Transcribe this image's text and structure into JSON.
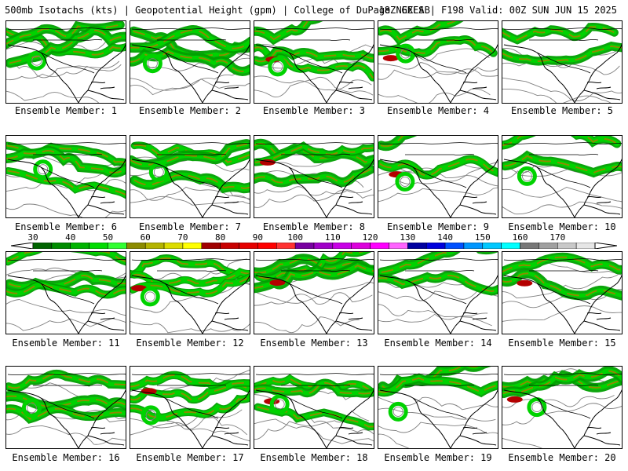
{
  "header": {
    "left": "500mb Isotachs (kts) | Geopotential Height (gpm) | College of DuPage NEXLAB",
    "right": "18Z GEFS | F198 Valid: 00Z SUN JUN 15 2025"
  },
  "colorbar": {
    "labels": [
      "30",
      "40",
      "50",
      "60",
      "70",
      "80",
      "90",
      "100",
      "110",
      "120",
      "130",
      "140",
      "150",
      "160",
      "170"
    ],
    "colors": [
      "#006400",
      "#008c00",
      "#00b400",
      "#00dc00",
      "#32ff32",
      "#8c8c00",
      "#b4b400",
      "#dcdc00",
      "#ffff00",
      "#a00000",
      "#c80000",
      "#e60000",
      "#ff0000",
      "#ff3232",
      "#7800a0",
      "#a000c8",
      "#c800e6",
      "#dc00dc",
      "#ff00ff",
      "#ff64ff",
      "#0000a0",
      "#0000dc",
      "#0050ff",
      "#0096ff",
      "#00c8ff",
      "#00ffff",
      "#787878",
      "#a0a0a0",
      "#c8c8c8",
      "#e6e6e6"
    ]
  },
  "colors": {
    "jet_outer": "#00a000",
    "jet_mid": "#00d200",
    "jet_core": "#8c8c00",
    "jet_max": "#b40000",
    "coast": "#000000",
    "height_contour": "#808080"
  },
  "members": [
    {
      "label": "Ensemble Member: 1"
    },
    {
      "label": "Ensemble Member: 2"
    },
    {
      "label": "Ensemble Member: 3"
    },
    {
      "label": "Ensemble Member: 4"
    },
    {
      "label": "Ensemble Member: 5"
    },
    {
      "label": "Ensemble Member: 6"
    },
    {
      "label": "Ensemble Member: 7"
    },
    {
      "label": "Ensemble Member: 8"
    },
    {
      "label": "Ensemble Member: 9"
    },
    {
      "label": "Ensemble Member: 10"
    },
    {
      "label": "Ensemble Member: 11"
    },
    {
      "label": "Ensemble Member: 12"
    },
    {
      "label": "Ensemble Member: 13"
    },
    {
      "label": "Ensemble Member: 14"
    },
    {
      "label": "Ensemble Member: 15"
    },
    {
      "label": "Ensemble Member: 16"
    },
    {
      "label": "Ensemble Member: 17"
    },
    {
      "label": "Ensemble Member: 18"
    },
    {
      "label": "Ensemble Member: 19"
    },
    {
      "label": "Ensemble Member: 20"
    }
  ]
}
